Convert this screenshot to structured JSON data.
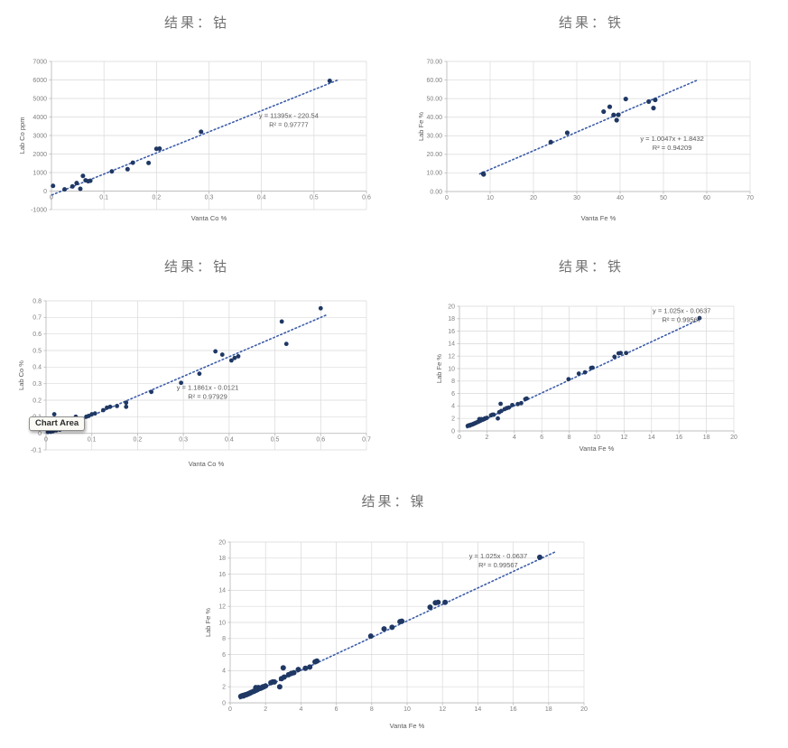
{
  "colors": {
    "point": "#1f3864",
    "trendline": "#3d5da8",
    "gridline": "#d9d9d9",
    "axis_line": "#bfbfbf",
    "tick_label": "#808080",
    "axis_title": "#595959",
    "chart_title": "#737373",
    "equation_text": "#595959"
  },
  "tooltip": {
    "label": "Chart Area"
  },
  "chart_data": [
    {
      "type": "scatter",
      "title": "结果：钴",
      "xlabel": "Vanta Co %",
      "ylabel": "Lab Co ppm",
      "xlim": [
        0,
        0.6
      ],
      "ylim": [
        -1000,
        7000
      ],
      "x_ticks": [
        "0",
        "0.1",
        "0.2",
        "0.3",
        "0.4",
        "0.5",
        "0.6"
      ],
      "y_ticks": [
        "-1000",
        "0",
        "1000",
        "2000",
        "3000",
        "4000",
        "5000",
        "6000",
        "7000"
      ],
      "grid": true,
      "equation": "y = 11395x - 220.54",
      "r_squared": "R² = 0.97777",
      "points": [
        [
          0.003,
          280
        ],
        [
          0.025,
          90
        ],
        [
          0.04,
          250
        ],
        [
          0.048,
          430
        ],
        [
          0.055,
          120
        ],
        [
          0.06,
          820
        ],
        [
          0.065,
          580
        ],
        [
          0.07,
          530
        ],
        [
          0.074,
          555
        ],
        [
          0.115,
          1060
        ],
        [
          0.145,
          1180
        ],
        [
          0.155,
          1530
        ],
        [
          0.185,
          1520
        ],
        [
          0.2,
          2280
        ],
        [
          0.206,
          2290
        ],
        [
          0.285,
          3200
        ],
        [
          0.53,
          5950
        ]
      ],
      "trendline": {
        "start": [
          0.001,
          -209
        ],
        "end": [
          0.547,
          6013
        ]
      }
    },
    {
      "type": "scatter",
      "title": "结果：铁",
      "xlabel": "Vanta Fe %",
      "ylabel": "Lab Fe %",
      "xlim": [
        0,
        70
      ],
      "ylim": [
        0,
        70
      ],
      "x_ticks": [
        "0",
        "10",
        "20",
        "30",
        "40",
        "50",
        "60",
        "70"
      ],
      "y_ticks": [
        "0.00",
        "10.00",
        "20.00",
        "30.00",
        "40.00",
        "50.00",
        "60.00",
        "70.00"
      ],
      "grid": true,
      "equation": "y = 1.0047x + 1.8432",
      "r_squared": "R² = 0.94209",
      "points": [
        [
          8.4,
          9.6
        ],
        [
          8.5,
          9.2
        ],
        [
          24,
          26.6
        ],
        [
          27.8,
          31.6
        ],
        [
          36.2,
          43
        ],
        [
          37.6,
          45.6
        ],
        [
          38.5,
          41.2
        ],
        [
          39.2,
          38.4
        ],
        [
          39.6,
          41.3
        ],
        [
          41.3,
          49.8
        ],
        [
          46.6,
          48.4
        ],
        [
          47.7,
          44.9
        ],
        [
          48.1,
          49.3
        ]
      ],
      "trendline": {
        "start": [
          7.6,
          9.48
        ],
        "end": [
          57.6,
          59.71
        ]
      }
    },
    {
      "type": "scatter",
      "title": "结果：钴",
      "xlabel": "Vanta Co %",
      "ylabel": "Lab Co %",
      "xlim": [
        0,
        0.7
      ],
      "ylim": [
        -0.1,
        0.8
      ],
      "x_ticks": [
        "0",
        "0.1",
        "0.2",
        "0.3",
        "0.4",
        "0.5",
        "0.6",
        "0.7"
      ],
      "y_ticks": [
        "-0.1",
        "0",
        "0.1",
        "0.2",
        "0.3",
        "0.4",
        "0.5",
        "0.6",
        "0.7",
        "0.8"
      ],
      "grid": true,
      "equation": "y = 1.1861x - 0.0121",
      "r_squared": "R² = 0.97929",
      "tooltip": "Chart Area",
      "points": [
        [
          0.004,
          0.008
        ],
        [
          0.007,
          0.012
        ],
        [
          0.01,
          0.01
        ],
        [
          0.012,
          0.018
        ],
        [
          0.015,
          0.012
        ],
        [
          0.018,
          0.022
        ],
        [
          0.022,
          0.018
        ],
        [
          0.025,
          0.028
        ],
        [
          0.03,
          0.022
        ],
        [
          0.018,
          0.115
        ],
        [
          0.065,
          0.1
        ],
        [
          0.07,
          0.085
        ],
        [
          0.088,
          0.1
        ],
        [
          0.093,
          0.105
        ],
        [
          0.1,
          0.115
        ],
        [
          0.107,
          0.12
        ],
        [
          0.125,
          0.14
        ],
        [
          0.133,
          0.155
        ],
        [
          0.14,
          0.16
        ],
        [
          0.155,
          0.165
        ],
        [
          0.175,
          0.185
        ],
        [
          0.175,
          0.16
        ],
        [
          0.23,
          0.25
        ],
        [
          0.295,
          0.305
        ],
        [
          0.335,
          0.36
        ],
        [
          0.37,
          0.495
        ],
        [
          0.385,
          0.475
        ],
        [
          0.405,
          0.44
        ],
        [
          0.412,
          0.455
        ],
        [
          0.42,
          0.465
        ],
        [
          0.515,
          0.675
        ],
        [
          0.525,
          0.54
        ],
        [
          0.6,
          0.755
        ]
      ],
      "trendline": {
        "start": [
          0.01,
          0.0
        ],
        "end": [
          0.615,
          0.7173
        ]
      }
    },
    {
      "type": "scatter",
      "title": "结果：铁",
      "xlabel": "Vanta Fe %",
      "ylabel": "Lab Fe %",
      "xlim": [
        0,
        20
      ],
      "ylim": [
        0,
        20
      ],
      "x_ticks": [
        "0",
        "2",
        "4",
        "6",
        "8",
        "10",
        "12",
        "14",
        "16",
        "18",
        "20"
      ],
      "y_ticks": [
        "0",
        "2",
        "4",
        "6",
        "8",
        "10",
        "12",
        "14",
        "16",
        "18",
        "20"
      ],
      "grid": true,
      "equation": "y = 1.025x - 0.0637",
      "r_squared": "R² = 0.99567",
      "points": [
        [
          0.6,
          0.8
        ],
        [
          0.65,
          0.85
        ],
        [
          0.7,
          0.9
        ],
        [
          0.75,
          0.85
        ],
        [
          0.8,
          0.95
        ],
        [
          0.85,
          1.0
        ],
        [
          0.9,
          1.0
        ],
        [
          0.95,
          1.05
        ],
        [
          1.0,
          1.1
        ],
        [
          1.05,
          1.15
        ],
        [
          1.1,
          1.2
        ],
        [
          1.15,
          1.25
        ],
        [
          1.2,
          1.3
        ],
        [
          1.3,
          1.4
        ],
        [
          1.35,
          1.45
        ],
        [
          1.4,
          1.5
        ],
        [
          1.45,
          1.9
        ],
        [
          1.5,
          1.6
        ],
        [
          1.55,
          1.65
        ],
        [
          1.6,
          1.9
        ],
        [
          1.7,
          1.8
        ],
        [
          1.75,
          1.85
        ],
        [
          1.8,
          1.9
        ],
        [
          1.85,
          2.0
        ],
        [
          1.9,
          2.0
        ],
        [
          2.0,
          2.1
        ],
        [
          2.3,
          2.5
        ],
        [
          2.4,
          2.6
        ],
        [
          2.5,
          2.6
        ],
        [
          2.8,
          2.0
        ],
        [
          2.9,
          3.0
        ],
        [
          3.0,
          4.35
        ],
        [
          3.05,
          3.2
        ],
        [
          3.3,
          3.5
        ],
        [
          3.45,
          3.65
        ],
        [
          3.6,
          3.75
        ],
        [
          3.85,
          4.15
        ],
        [
          4.25,
          4.3
        ],
        [
          4.5,
          4.45
        ],
        [
          4.8,
          5.1
        ],
        [
          4.9,
          5.2
        ],
        [
          7.95,
          8.3
        ],
        [
          8.7,
          9.2
        ],
        [
          9.15,
          9.4
        ],
        [
          9.6,
          10.1
        ],
        [
          9.7,
          10.15
        ],
        [
          11.3,
          11.9
        ],
        [
          11.6,
          12.45
        ],
        [
          11.75,
          12.5
        ],
        [
          12.15,
          12.5
        ],
        [
          17.5,
          18.1
        ]
      ],
      "trendline": {
        "start": [
          0.55,
          0.5
        ],
        "end": [
          17.6,
          18.0
        ]
      }
    },
    {
      "type": "scatter",
      "title": "结果：镍",
      "xlabel": "Vanta Fe %",
      "ylabel": "Lab Fe %",
      "xlim": [
        0,
        20
      ],
      "ylim": [
        0,
        20
      ],
      "x_ticks": [
        "0",
        "2",
        "4",
        "6",
        "8",
        "10",
        "12",
        "14",
        "16",
        "18",
        "20"
      ],
      "y_ticks": [
        "0",
        "2",
        "4",
        "6",
        "8",
        "10",
        "12",
        "14",
        "16",
        "18",
        "20"
      ],
      "grid": true,
      "equation": "y = 1.025x - 0.0637",
      "r_squared": "R² = 0.99567",
      "points": [
        [
          0.6,
          0.8
        ],
        [
          0.65,
          0.85
        ],
        [
          0.7,
          0.9
        ],
        [
          0.75,
          0.85
        ],
        [
          0.8,
          0.95
        ],
        [
          0.85,
          1.0
        ],
        [
          0.9,
          1.0
        ],
        [
          0.95,
          1.05
        ],
        [
          1.0,
          1.1
        ],
        [
          1.05,
          1.15
        ],
        [
          1.1,
          1.2
        ],
        [
          1.15,
          1.25
        ],
        [
          1.2,
          1.3
        ],
        [
          1.3,
          1.4
        ],
        [
          1.35,
          1.45
        ],
        [
          1.4,
          1.5
        ],
        [
          1.45,
          1.9
        ],
        [
          1.5,
          1.6
        ],
        [
          1.55,
          1.65
        ],
        [
          1.6,
          1.9
        ],
        [
          1.7,
          1.8
        ],
        [
          1.75,
          1.85
        ],
        [
          1.8,
          1.9
        ],
        [
          1.85,
          2.0
        ],
        [
          1.9,
          2.0
        ],
        [
          2.0,
          2.1
        ],
        [
          2.3,
          2.5
        ],
        [
          2.4,
          2.6
        ],
        [
          2.5,
          2.6
        ],
        [
          2.8,
          2.0
        ],
        [
          2.9,
          3.0
        ],
        [
          3.0,
          4.35
        ],
        [
          3.05,
          3.2
        ],
        [
          3.3,
          3.5
        ],
        [
          3.45,
          3.65
        ],
        [
          3.6,
          3.75
        ],
        [
          3.85,
          4.15
        ],
        [
          4.25,
          4.3
        ],
        [
          4.5,
          4.45
        ],
        [
          4.8,
          5.1
        ],
        [
          4.9,
          5.2
        ],
        [
          7.95,
          8.3
        ],
        [
          8.7,
          9.2
        ],
        [
          9.15,
          9.4
        ],
        [
          9.6,
          10.1
        ],
        [
          9.7,
          10.15
        ],
        [
          11.3,
          11.9
        ],
        [
          11.6,
          12.45
        ],
        [
          11.75,
          12.5
        ],
        [
          12.15,
          12.5
        ],
        [
          17.5,
          18.1
        ]
      ],
      "trendline": {
        "start": [
          0.55,
          0.5
        ],
        "end": [
          18.4,
          18.8
        ]
      }
    }
  ]
}
